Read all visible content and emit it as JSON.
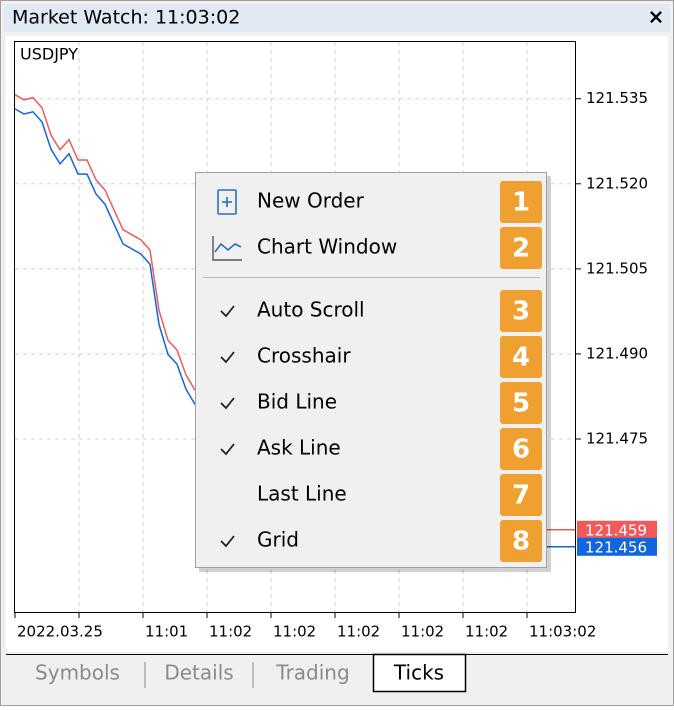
{
  "window": {
    "title": "Market Watch: 11:03:02",
    "close": "×"
  },
  "chart_data": {
    "type": "line",
    "title": "USDJPY",
    "ylim": [
      121.4445,
      121.545
    ],
    "yticks": [
      121.535,
      {
        "value": 121.52,
        "label": "121.520"
      },
      121.505,
      {
        "value": 121.49,
        "label": "121.490"
      },
      121.475
    ],
    "xtick_labels": [
      "2022.03.25",
      null,
      "11:01",
      "11:02",
      "11:02",
      "11:02",
      "11:02",
      "11:02",
      "11:03:02"
    ],
    "grid": true,
    "series": [
      {
        "color": "#f05a5a",
        "values": [
          121.5357,
          121.5348,
          121.5352,
          121.5334,
          121.5286,
          121.526,
          121.5278,
          121.5242,
          121.5242,
          121.5207,
          121.5189,
          121.5154,
          121.5119,
          121.511,
          121.5101,
          121.5083,
          121.4977,
          121.4924,
          121.4907,
          121.4863,
          121.4836
        ]
      },
      {
        "color": "#1166dd",
        "values": [
          121.5332,
          121.5323,
          121.5327,
          121.5309,
          121.5261,
          121.5235,
          121.5253,
          121.5217,
          121.5217,
          121.5182,
          121.5164,
          121.5129,
          121.5094,
          121.5085,
          121.5076,
          121.5058,
          121.4952,
          121.4899,
          121.4882,
          121.4838,
          121.4811
        ]
      }
    ],
    "price_labels": [
      {
        "value": 121.459,
        "color": "#f05a5a"
      },
      {
        "value": 121.456,
        "color": "#1166dd"
      }
    ]
  },
  "context_menu": {
    "items": [
      {
        "label": "New Order",
        "badge": 1,
        "checked": false
      },
      {
        "label": "Chart Window",
        "badge": 2,
        "checked": false
      },
      {
        "label": "Auto Scroll",
        "badge": 3,
        "checked": true
      },
      {
        "label": "Crosshair",
        "badge": 4,
        "checked": true
      },
      {
        "label": "Bid Line",
        "badge": 5,
        "checked": true
      },
      {
        "label": "Ask Line",
        "badge": 6,
        "checked": true
      },
      {
        "label": "Last Line",
        "badge": 7,
        "checked": false
      },
      {
        "label": "Grid",
        "badge": 8,
        "checked": true
      }
    ]
  },
  "tabs": {
    "items": [
      "Symbols",
      "Details",
      "Trading",
      "Ticks"
    ],
    "active": 3
  }
}
